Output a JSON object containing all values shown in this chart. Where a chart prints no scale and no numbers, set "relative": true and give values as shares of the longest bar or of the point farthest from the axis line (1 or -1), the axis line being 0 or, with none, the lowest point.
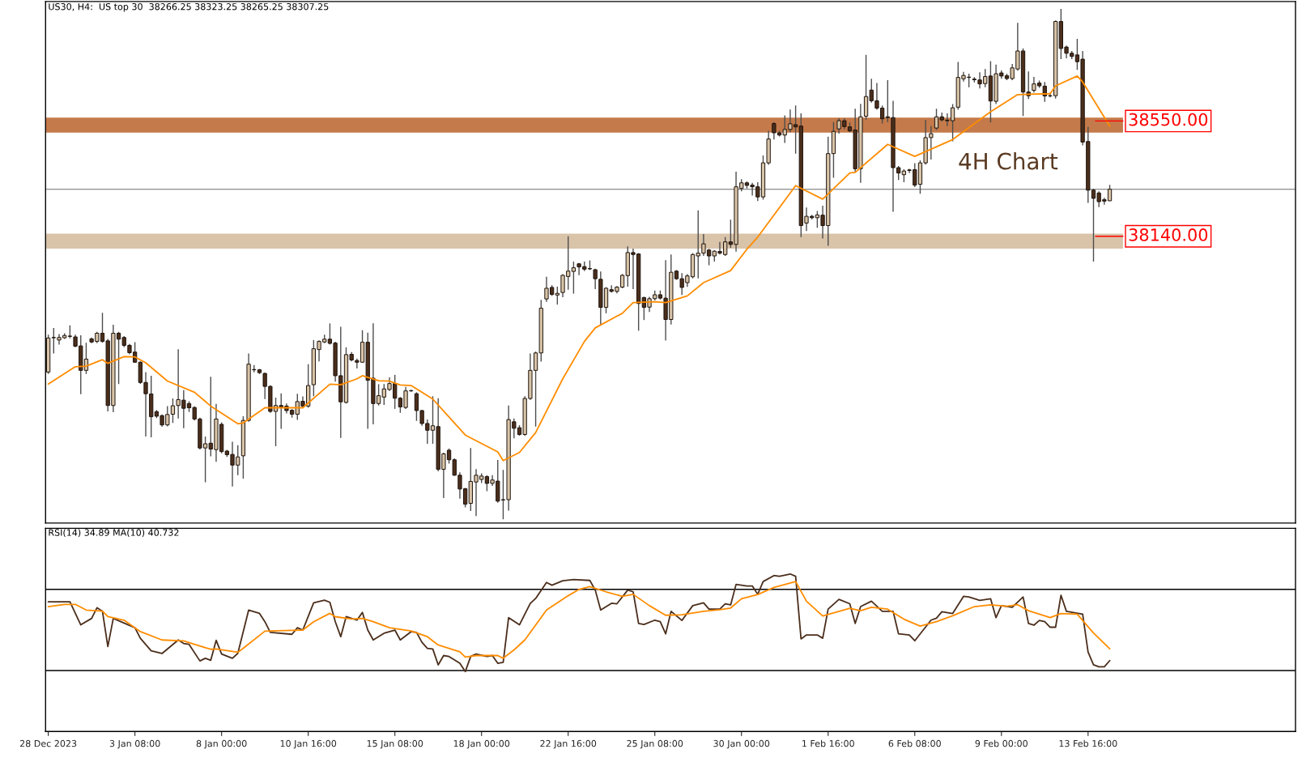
{
  "chart_data": [
    {
      "type": "candlestick",
      "title": "US30, H4:  US top 30  38266.25 38323.25 38265.25 38307.25",
      "categories": [
        null,
        null,
        null,
        null,
        null,
        null,
        null,
        null,
        null,
        null,
        null,
        null,
        null,
        null,
        null,
        null,
        null,
        null,
        null,
        null,
        null,
        null,
        null,
        null,
        null,
        null,
        null,
        null,
        null,
        null,
        null,
        null,
        null,
        null,
        null,
        null,
        null,
        null,
        null,
        null,
        null,
        null,
        null,
        null,
        null,
        null,
        null,
        null,
        null,
        null,
        null,
        null,
        null,
        null,
        null,
        null,
        null,
        null,
        null,
        null,
        null,
        null,
        null,
        null,
        null,
        null,
        null,
        null,
        null,
        null,
        null,
        null,
        null,
        null,
        null,
        null,
        null,
        null,
        null,
        null,
        null,
        null,
        null,
        null,
        null,
        null,
        null,
        null,
        null,
        null,
        null,
        null,
        null,
        null,
        null,
        null,
        null,
        null,
        null,
        null,
        null,
        null,
        null,
        null,
        null,
        null,
        null,
        null,
        null,
        null,
        null,
        null,
        null,
        null,
        null,
        null,
        null,
        null,
        null,
        null,
        null,
        null,
        null,
        null,
        null,
        null,
        null,
        null,
        null,
        null,
        null,
        null,
        null,
        null,
        null,
        null,
        null,
        null,
        null,
        null,
        null,
        null,
        null,
        null,
        null,
        null,
        null,
        null,
        null,
        null,
        null,
        null,
        null,
        null,
        null,
        null,
        null,
        null,
        null,
        null,
        null,
        null,
        null,
        null,
        null,
        null,
        null,
        null,
        null,
        null,
        null,
        null,
        null,
        null,
        null,
        null,
        null,
        null,
        null,
        null,
        null,
        null,
        null,
        null,
        null,
        null,
        null,
        null,
        null,
        null,
        null,
        null,
        null,
        null,
        null,
        null,
        null
      ],
      "ohlc": [
        [
          37657,
          37790,
          37650,
          37778
        ],
        [
          37780,
          37814,
          37723,
          37779
        ],
        [
          37771,
          37792,
          37755,
          37780
        ],
        [
          37779,
          37795,
          37775,
          37787
        ],
        [
          37785,
          37823,
          37777,
          37784
        ],
        [
          37782,
          37790,
          37745,
          37749
        ],
        [
          37750,
          37788,
          37578,
          37663
        ],
        [
          37663,
          37761,
          37650,
          37703
        ],
        [
          37775,
          37780,
          37760,
          37764
        ],
        [
          37766,
          37800,
          37760,
          37795
        ],
        [
          37795,
          37868,
          37761,
          37766
        ],
        [
          37768,
          37775,
          37517,
          37538
        ],
        [
          37538,
          37825,
          37514,
          37795
        ],
        [
          37795,
          37800,
          37614,
          37774
        ],
        [
          37780,
          37785,
          37745,
          37752
        ],
        [
          37752,
          37757,
          37720,
          37726
        ],
        [
          37728,
          37763,
          37690,
          37692
        ],
        [
          37692,
          37695,
          37615,
          37620
        ],
        [
          37620,
          37657,
          37428,
          37580
        ],
        [
          37579,
          37644,
          37425,
          37498
        ],
        [
          37516,
          37522,
          37493,
          37500
        ],
        [
          37502,
          37506,
          37462,
          37469
        ],
        [
          37469,
          37536,
          37464,
          37506
        ],
        [
          37507,
          37563,
          37476,
          37537
        ],
        [
          37538,
          37738,
          37492,
          37559
        ],
        [
          37557,
          37593,
          37457,
          37528
        ],
        [
          37545,
          37553,
          37515,
          37530
        ],
        [
          37531,
          37535,
          37485,
          37490
        ],
        [
          37490,
          37495,
          37382,
          37387
        ],
        [
          37387,
          37428,
          37265,
          37402
        ],
        [
          37404,
          37640,
          37357,
          37383
        ],
        [
          37381,
          37544,
          37338,
          37490
        ],
        [
          37471,
          37478,
          37368,
          37374
        ],
        [
          37376,
          37380,
          37355,
          37363
        ],
        [
          37364,
          37409,
          37250,
          37326
        ],
        [
          37326,
          37397,
          37290,
          37355
        ],
        [
          37359,
          37500,
          37278,
          37485
        ],
        [
          37485,
          37723,
          37480,
          37685
        ],
        [
          37666,
          37682,
          37656,
          37665
        ],
        [
          37665,
          37668,
          37650,
          37655
        ],
        [
          37652,
          37655,
          37561,
          37606
        ],
        [
          37606,
          37610,
          37512,
          37517
        ],
        [
          37517,
          37566,
          37393,
          37538
        ],
        [
          37538,
          37581,
          37455,
          37533
        ],
        [
          37536,
          37545,
          37510,
          37520
        ],
        [
          37521,
          37525,
          37495,
          37507
        ],
        [
          37507,
          37580,
          37487,
          37552
        ],
        [
          37553,
          37570,
          37530,
          37536
        ],
        [
          37536,
          37685,
          37530,
          37609
        ],
        [
          37612,
          37771,
          37571,
          37740
        ],
        [
          37737,
          37770,
          37695,
          37766
        ],
        [
          37764,
          37790,
          37760,
          37774
        ],
        [
          37774,
          37830,
          37755,
          37759
        ],
        [
          37760,
          37765,
          37623,
          37644
        ],
        [
          37644,
          37818,
          37423,
          37551
        ],
        [
          37549,
          37745,
          37545,
          37719
        ],
        [
          37720,
          37728,
          37695,
          37700
        ],
        [
          37698,
          37705,
          37670,
          37692
        ],
        [
          37692,
          37806,
          37690,
          37763
        ],
        [
          37763,
          37797,
          37455,
          37628
        ],
        [
          37635,
          37830,
          37471,
          37545
        ],
        [
          37545,
          37614,
          37538,
          37573
        ],
        [
          37568,
          37614,
          37540,
          37597
        ],
        [
          37595,
          37638,
          37590,
          37616
        ],
        [
          37616,
          37647,
          37526,
          37564
        ],
        [
          37564,
          37568,
          37512,
          37533
        ],
        [
          37531,
          37604,
          37526,
          37590
        ],
        [
          37591,
          37594,
          37587,
          37590
        ],
        [
          37580,
          37585,
          37483,
          37520
        ],
        [
          37520,
          37522,
          37466,
          37474
        ],
        [
          37474,
          37488,
          37402,
          37450
        ],
        [
          37450,
          37571,
          37402,
          37466
        ],
        [
          37463,
          37564,
          37304,
          37311
        ],
        [
          37311,
          37370,
          37209,
          37366
        ],
        [
          37379,
          37385,
          37331,
          37345
        ],
        [
          37345,
          37350,
          37288,
          37290
        ],
        [
          37290,
          37300,
          37207,
          37241
        ],
        [
          37242,
          37245,
          37176,
          37187
        ],
        [
          37190,
          37387,
          37163,
          37268
        ],
        [
          37266,
          37312,
          37145,
          37290
        ],
        [
          37275,
          37297,
          37262,
          37287
        ],
        [
          37285,
          37290,
          37233,
          37261
        ],
        [
          37261,
          37290,
          37252,
          37273
        ],
        [
          37269,
          37344,
          37192,
          37198
        ],
        [
          37202,
          37309,
          37133,
          37203
        ],
        [
          37203,
          37538,
          37164,
          37488
        ],
        [
          37480,
          37492,
          37421,
          37457
        ],
        [
          37459,
          37468,
          37431,
          37435
        ],
        [
          37435,
          37571,
          37430,
          37563
        ],
        [
          37563,
          37723,
          37558,
          37663
        ],
        [
          37663,
          37730,
          37463,
          37725
        ],
        [
          37725,
          37914,
          37694,
          37884
        ],
        [
          37917,
          37996,
          37907,
          37955
        ],
        [
          37958,
          37966,
          37928,
          37933
        ],
        [
          37931,
          37961,
          37897,
          37937
        ],
        [
          37940,
          38005,
          37923,
          38001
        ],
        [
          37997,
          38140,
          37950,
          38016
        ],
        [
          38015,
          38050,
          37936,
          38028
        ],
        [
          38042,
          38045,
          38002,
          38031
        ],
        [
          38032,
          38050,
          38016,
          38023
        ],
        [
          38025,
          38054,
          38020,
          38024
        ],
        [
          38021,
          38025,
          37952,
          37989
        ],
        [
          37987,
          38015,
          37823,
          37887
        ],
        [
          37887,
          37959,
          37866,
          37955
        ],
        [
          37950,
          37966,
          37940,
          37944
        ],
        [
          37944,
          37963,
          37937,
          37959
        ],
        [
          37959,
          38006,
          37955,
          38001
        ],
        [
          38000,
          38104,
          37961,
          38082
        ],
        [
          38082,
          38096,
          37952,
          38075
        ],
        [
          38077,
          38080,
          37804,
          37901
        ],
        [
          37922,
          37925,
          37842,
          37887
        ],
        [
          37888,
          37925,
          37871,
          37918
        ],
        [
          37918,
          37947,
          37912,
          37932
        ],
        [
          37932,
          37947,
          37915,
          37920
        ],
        [
          37920,
          38055,
          37769,
          37844
        ],
        [
          37844,
          38075,
          37826,
          38012
        ],
        [
          38016,
          38020,
          37985,
          37989
        ],
        [
          37989,
          38009,
          37931,
          37958
        ],
        [
          37975,
          38005,
          37960,
          37999
        ],
        [
          37996,
          38080,
          37990,
          38075
        ],
        [
          38070,
          38232,
          37990,
          38080
        ],
        [
          38080,
          38148,
          38070,
          38113
        ],
        [
          38091,
          38095,
          38037,
          38070
        ],
        [
          38070,
          38090,
          38050,
          38087
        ],
        [
          38086,
          38120,
          38075,
          38080
        ],
        [
          38075,
          38137,
          38070,
          38120
        ],
        [
          38120,
          38199,
          38099,
          38111
        ],
        [
          38111,
          38370,
          38085,
          38316
        ],
        [
          38310,
          38343,
          38300,
          38330
        ],
        [
          38330,
          38335,
          38310,
          38321
        ],
        [
          38322,
          38330,
          38285,
          38316
        ],
        [
          38316,
          38332,
          38265,
          38280
        ],
        [
          38280,
          38427,
          38270,
          38401
        ],
        [
          38401,
          38515,
          38394,
          38486
        ],
        [
          38541,
          38546,
          38484,
          38508
        ],
        [
          38508,
          38515,
          38495,
          38500
        ],
        [
          38500,
          38570,
          38472,
          38520
        ],
        [
          38520,
          38591,
          38510,
          38540
        ],
        [
          38537,
          38605,
          38434,
          38529
        ],
        [
          38532,
          38577,
          38137,
          38178
        ],
        [
          38187,
          38242,
          38159,
          38211
        ],
        [
          38211,
          38216,
          38200,
          38206
        ],
        [
          38206,
          38230,
          38170,
          38216
        ],
        [
          38215,
          38249,
          38132,
          38178
        ],
        [
          38178,
          38494,
          38106,
          38434
        ],
        [
          38434,
          38546,
          38348,
          38513
        ],
        [
          38522,
          38560,
          38505,
          38551
        ],
        [
          38551,
          38560,
          38520,
          38530
        ],
        [
          38529,
          38545,
          38510,
          38515
        ],
        [
          38518,
          38594,
          38370,
          38380
        ],
        [
          38380,
          38611,
          38330,
          38565
        ],
        [
          38567,
          38785,
          38555,
          38637
        ],
        [
          38660,
          38700,
          38615,
          38622
        ],
        [
          38622,
          38685,
          38590,
          38596
        ],
        [
          38596,
          38605,
          38541,
          38558
        ],
        [
          38565,
          38695,
          38546,
          38562
        ],
        [
          38562,
          38622,
          38227,
          38384
        ],
        [
          38384,
          38390,
          38340,
          38365
        ],
        [
          38359,
          38378,
          38332,
          38372
        ],
        [
          38376,
          38380,
          38365,
          38374
        ],
        [
          38377,
          38400,
          38315,
          38322
        ],
        [
          38325,
          38410,
          38291,
          38401
        ],
        [
          38401,
          38553,
          38395,
          38491
        ],
        [
          38491,
          38532,
          38413,
          38505
        ],
        [
          38525,
          38594,
          38518,
          38565
        ],
        [
          38565,
          38580,
          38548,
          38554
        ],
        [
          38553,
          38577,
          38532,
          38551
        ],
        [
          38551,
          38610,
          38478,
          38597
        ],
        [
          38599,
          38760,
          38590,
          38705
        ],
        [
          38700,
          38725,
          38690,
          38712
        ],
        [
          38706,
          38718,
          38670,
          38705
        ],
        [
          38699,
          38706,
          38687,
          38697
        ],
        [
          38696,
          38723,
          38666,
          38682
        ],
        [
          38683,
          38735,
          38670,
          38708
        ],
        [
          38710,
          38763,
          38545,
          38621
        ],
        [
          38620,
          38751,
          38610,
          38718
        ],
        [
          38721,
          38730,
          38700,
          38710
        ],
        [
          38711,
          38718,
          38695,
          38701
        ],
        [
          38701,
          38753,
          38695,
          38739
        ],
        [
          38735,
          38899,
          38729,
          38799
        ],
        [
          38799,
          38808,
          38568,
          38653
        ],
        [
          38653,
          38726,
          38628,
          38640
        ],
        [
          38659,
          38707,
          38651,
          38682
        ],
        [
          38685,
          38694,
          38668,
          38675
        ],
        [
          38674,
          38689,
          38618,
          38639
        ],
        [
          38640,
          38651,
          38634,
          38639
        ],
        [
          38640,
          38908,
          38630,
          38904
        ],
        [
          38904,
          38949,
          38770,
          38808
        ],
        [
          38813,
          38818,
          38773,
          38791
        ],
        [
          38791,
          38799,
          38770,
          38780
        ],
        [
          38785,
          38842,
          38732,
          38761
        ],
        [
          38770,
          38799,
          38463,
          38475
        ],
        [
          38477,
          38529,
          38259,
          38304
        ],
        [
          38304,
          38309,
          38050,
          38275
        ],
        [
          38294,
          38300,
          38244,
          38263
        ],
        [
          38270,
          38277,
          38252,
          38265
        ],
        [
          38266.25,
          38323.25,
          38265.25,
          38307.25
        ]
      ],
      "colors": [
        "#d8c4a8",
        "#4b2e1c",
        "#d8c4a8",
        "#d8c4a8",
        "#4b2e1c",
        "#4b2e1c",
        "#4b2e1c",
        "#d8c4a8",
        "#4b2e1c",
        "#d8c4a8",
        "#4b2e1c",
        "#4b2e1c",
        "#d8c4a8",
        "#4b2e1c",
        "#4b2e1c",
        "#4b2e1c",
        "#4b2e1c",
        "#4b2e1c",
        "#4b2e1c",
        "#4b2e1c",
        "#4b2e1c",
        "#4b2e1c",
        "#d8c4a8",
        "#d8c4a8",
        "#d8c4a8",
        "#4b2e1c",
        "#4b2e1c",
        "#4b2e1c",
        "#4b2e1c",
        "#d8c4a8",
        "#4b2e1c",
        "#d8c4a8",
        "#4b2e1c",
        "#4b2e1c",
        "#4b2e1c",
        "#d8c4a8",
        "#d8c4a8",
        "#d8c4a8",
        "#4b2e1c",
        "#4b2e1c",
        "#4b2e1c",
        "#4b2e1c",
        "#d8c4a8",
        "#4b2e1c",
        "#4b2e1c",
        "#4b2e1c",
        "#d8c4a8",
        "#4b2e1c",
        "#d8c4a8",
        "#d8c4a8",
        "#d8c4a8",
        "#d8c4a8",
        "#4b2e1c",
        "#4b2e1c",
        "#4b2e1c",
        "#d8c4a8",
        "#4b2e1c",
        "#4b2e1c",
        "#d8c4a8",
        "#4b2e1c",
        "#4b2e1c",
        "#d8c4a8",
        "#d8c4a8",
        "#d8c4a8",
        "#4b2e1c",
        "#4b2e1c",
        "#d8c4a8",
        "#4b2e1c",
        "#4b2e1c",
        "#4b2e1c",
        "#4b2e1c",
        "#d8c4a8",
        "#4b2e1c",
        "#d8c4a8",
        "#4b2e1c",
        "#4b2e1c",
        "#4b2e1c",
        "#4b2e1c",
        "#d8c4a8",
        "#d8c4a8",
        "#d8c4a8",
        "#4b2e1c",
        "#d8c4a8",
        "#4b2e1c",
        "#d8c4a8",
        "#d8c4a8",
        "#4b2e1c",
        "#4b2e1c",
        "#d8c4a8",
        "#d8c4a8",
        "#d8c4a8",
        "#d8c4a8",
        "#d8c4a8",
        "#4b2e1c",
        "#d8c4a8",
        "#d8c4a8",
        "#d8c4a8",
        "#d8c4a8",
        "#4b2e1c",
        "#4b2e1c",
        "#4b2e1c",
        "#4b2e1c",
        "#4b2e1c",
        "#d8c4a8",
        "#4b2e1c",
        "#d8c4a8",
        "#d8c4a8",
        "#d8c4a8",
        "#4b2e1c",
        "#4b2e1c",
        "#4b2e1c",
        "#d8c4a8",
        "#d8c4a8",
        "#4b2e1c",
        "#4b2e1c",
        "#d8c4a8",
        "#4b2e1c",
        "#4b2e1c",
        "#d8c4a8",
        "#d8c4a8",
        "#d8c4a8",
        "#d8c4a8",
        "#4b2e1c",
        "#d8c4a8",
        "#4b2e1c",
        "#d8c4a8",
        "#4b2e1c",
        "#d8c4a8",
        "#d8c4a8",
        "#4b2e1c",
        "#4b2e1c",
        "#4b2e1c",
        "#d8c4a8",
        "#d8c4a8",
        "#4b2e1c",
        "#4b2e1c",
        "#d8c4a8",
        "#d8c4a8",
        "#4b2e1c",
        "#4b2e1c",
        "#d8c4a8",
        "#4b2e1c",
        "#d8c4a8",
        "#4b2e1c",
        "#d8c4a8",
        "#d8c4a8",
        "#d8c4a8",
        "#4b2e1c",
        "#4b2e1c",
        "#4b2e1c",
        "#d8c4a8",
        "#d8c4a8",
        "#4b2e1c",
        "#4b2e1c",
        "#4b2e1c",
        "#4b2e1c",
        "#4b2e1c",
        "#4b2e1c",
        "#d8c4a8",
        "#4b2e1c",
        "#4b2e1c",
        "#d8c4a8",
        "#d8c4a8",
        "#d8c4a8",
        "#d8c4a8",
        "#4b2e1c",
        "#4b2e1c",
        "#d8c4a8",
        "#d8c4a8",
        "#d8c4a8",
        "#4b2e1c",
        "#4b2e1c",
        "#4b2e1c",
        "#d8c4a8",
        "#4b2e1c",
        "#d8c4a8",
        "#4b2e1c",
        "#4b2e1c",
        "#d8c4a8",
        "#d8c4a8",
        "#4b2e1c",
        "#4b2e1c",
        "#d8c4a8",
        "#4b2e1c",
        "#4b2e1c",
        "#4b2e1c",
        "#d8c4a8",
        "#4b2e1c",
        "#4b2e1c",
        "#4b2e1c",
        "#4b2e1c",
        "#4b2e1c",
        "#4b2e1c",
        "#4b2e1c",
        "#4b2e1c",
        "#4b2e1c",
        "#d8c4a8"
      ],
      "series": [
        {
          "type": "line",
          "color": "#ff8c00",
          "values": [
            37614,
            null,
            null,
            null,
            null,
            37676,
            null,
            37678,
            null,
            null,
            37701,
            37688,
            null,
            null,
            37712,
            null,
            37711,
            null,
            37690,
            null,
            null,
            null,
            37625,
            null,
            null,
            null,
            null,
            37585,
            null,
            null,
            37536,
            null,
            null,
            null,
            null,
            37473,
            37476,
            null,
            null,
            null,
            37530,
            null,
            null,
            null,
            null,
            null,
            null,
            37530,
            null,
            null,
            null,
            null,
            37614,
            null,
            37612,
            null,
            null,
            37633,
            37644,
            null,
            null,
            37626,
            null,
            37625,
            null,
            37611,
            null,
            37609,
            null,
            null,
            null,
            37561,
            null,
            null,
            null,
            null,
            null,
            37433,
            null,
            null,
            null,
            null,
            null,
            37373,
            37342,
            null,
            null,
            37371,
            null,
            null,
            37442,
            null,
            null,
            null,
            null,
            37633,
            null,
            null,
            null,
            37766,
            null,
            37814,
            null,
            null,
            null,
            null,
            37866,
            null,
            37904,
            null,
            null,
            null,
            37907,
            null,
            37904,
            null,
            null,
            null,
            37928,
            null,
            null,
            37975,
            null,
            null,
            null,
            null,
            38018,
            null,
            null,
            38094,
            null,
            38137,
            null,
            null,
            null,
            null,
            null,
            null,
            38320,
            null,
            null,
            null,
            null,
            38272,
            null,
            null,
            null,
            null,
            38365,
            38367,
            null,
            null,
            null,
            null,
            null,
            38467,
            null,
            null,
            null,
            null,
            38424,
            null,
            null,
            null,
            null,
            null,
            null,
            38484,
            null,
            null,
            null,
            null,
            null,
            null,
            38583,
            null,
            null,
            null,
            null,
            38644,
            null,
            null,
            null,
            null,
            null,
            38647,
            38675,
            null,
            null,
            null,
            38710,
            38689,
            null,
            null,
            null,
            null,
            38532
          ]
        }
      ],
      "ylim": [
        37120,
        38975
      ],
      "tick_labels": false,
      "bands": [
        {
          "axis": "y",
          "from": 38509,
          "to": 38562,
          "color": "#c47a4a"
        },
        {
          "axis": "y",
          "from": 38096,
          "to": 38149,
          "color": "#d9c3a9"
        }
      ],
      "ref_lines": [
        {
          "axis": "y",
          "value": 38550,
          "label": "38550.00",
          "color": "#ff0000"
        },
        {
          "axis": "y",
          "value": 38140,
          "label": "38140.00",
          "color": "#ff0000"
        },
        {
          "axis": "y",
          "value": 38307.25,
          "label": null,
          "color": "#6e6e6e"
        }
      ],
      "annotations": [
        "4H Chart"
      ]
    },
    {
      "type": "line",
      "title": "RSI(14) 34.89 MA(10) 40.732",
      "categories": [
        "28 Dec 2023",
        null,
        null,
        null,
        null,
        null,
        null,
        null,
        null,
        null,
        null,
        null,
        null,
        null,
        null,
        null,
        "3 Jan 08:00",
        null,
        null,
        null,
        null,
        null,
        null,
        null,
        null,
        null,
        null,
        null,
        null,
        null,
        null,
        null,
        "8 Jan 00:00",
        null,
        null,
        null,
        null,
        null,
        null,
        null,
        null,
        null,
        null,
        null,
        null,
        null,
        null,
        null,
        "10 Jan 16:00",
        null,
        null,
        null,
        null,
        null,
        null,
        null,
        null,
        null,
        null,
        null,
        null,
        null,
        null,
        null,
        "15 Jan 08:00",
        null,
        null,
        null,
        null,
        null,
        null,
        null,
        null,
        null,
        null,
        null,
        null,
        null,
        null,
        null,
        "18 Jan 00:00",
        null,
        null,
        null,
        null,
        null,
        null,
        null,
        null,
        null,
        null,
        null,
        null,
        null,
        null,
        null,
        "22 Jan 16:00",
        null,
        null,
        null,
        null,
        null,
        null,
        null,
        null,
        null,
        null,
        null,
        null,
        null,
        null,
        null,
        "25 Jan 08:00",
        null,
        null,
        null,
        null,
        null,
        null,
        null,
        null,
        null,
        null,
        null,
        null,
        null,
        null,
        null,
        "30 Jan 00:00",
        null,
        null,
        null,
        null,
        null,
        null,
        null,
        null,
        null,
        null,
        null,
        null,
        null,
        null,
        null,
        "1 Feb 16:00",
        null,
        null,
        null,
        null,
        null,
        null,
        null,
        null,
        null,
        null,
        null,
        null,
        null,
        null,
        null,
        "6 Feb 08:00",
        null,
        null,
        null,
        null,
        null,
        null,
        null,
        null,
        null,
        null,
        null,
        null,
        null,
        null,
        null,
        "9 Feb 00:00",
        null,
        null,
        null,
        null,
        null,
        null,
        null,
        null,
        null,
        null,
        null,
        null,
        null,
        null,
        null,
        "13 Feb 16:00",
        null,
        null,
        null,
        null
      ],
      "series": [
        {
          "type": "line",
          "color": "#4b2e1c",
          "values": [
            0.823,
            null,
            null,
            null,
            0.823,
            null,
            0.677,
            null,
            0.718,
            0.786,
            0.764,
            0.539,
            0.718,
            null,
            null,
            null,
            0.659,
            0.592,
            null,
            0.512,
            null,
            0.495,
            null,
            null,
            0.581,
            0.559,
            0.553,
            null,
            0.448,
            0.465,
            0.452,
            0.579,
            0.492,
            null,
            0.465,
            0.496,
            null,
            0.771,
            null,
            0.75,
            0.697,
            0.629,
            null,
            null,
            null,
            0.617,
            0.659,
            0.644,
            null,
            0.817,
            null,
            0.834,
            0.82,
            0.697,
            0.602,
            0.729,
            null,
            0.707,
            0.756,
            0.644,
            0.581,
            null,
            0.624,
            null,
            0.644,
            0.581,
            null,
            0.634,
            0.629,
            0.566,
            0.528,
            0.524,
            0.423,
            0.482,
            0.476,
            null,
            0.433,
            0.38,
            0.476,
            0.492,
            null,
            0.476,
            0.482,
            0.433,
            0.439,
            0.723,
            null,
            0.677,
            null,
            0.813,
            0.845,
            null,
            0.946,
            0.929,
            null,
            0.957,
            null,
            0.965,
            null,
            null,
            0.959,
            0.898,
            0.771,
            null,
            0.814,
            0.811,
            null,
            0.898,
            0.887,
            0.686,
            0.679,
            null,
            0.707,
            0.697,
            0.62,
            0.763,
            null,
            0.705,
            null,
            0.799,
            null,
            0.817,
            0.777,
            null,
            0.777,
            0.811,
            0.804,
            0.934,
            null,
            0.924,
            0.924,
            0.871,
            0.952,
            null,
            0.99,
            0.985,
            null,
            1,
            0.985,
            0.588,
            0.613,
            null,
            0.613,
            0.592,
            0.777,
            null,
            0.839,
            null,
            0.811,
            0.686,
            0.793,
            null,
            0.827,
            null,
            0.763,
            null,
            0.763,
            0.62,
            null,
            0.613,
            0.576,
            null,
            null,
            0.707,
            0.719,
            0.76,
            null,
            0.749,
            null,
            0.858,
            0.854,
            null,
            0.832,
            null,
            0.843,
            0.723,
            0.799,
            null,
            0.789,
            null,
            0.854,
            0.686,
            0.675,
            0.705,
            0.697,
            0.662,
            0.662,
            0.865,
            0.763,
            null,
            null,
            0.745,
            0.505,
            0.424,
            0.411,
            0.411,
            0.45
          ]
        },
        {
          "type": "line",
          "color": "#ff8c00",
          "values": [
            0.793,
            null,
            null,
            0.807,
            null,
            0.807,
            null,
            0.771,
            null,
            null,
            0.764,
            0.729,
            null,
            null,
            0.707,
            null,
            null,
            0.634,
            null,
            null,
            null,
            0.581,
            null,
            null,
            null,
            0.575,
            null,
            0.553,
            null,
            null,
            0.522,
            0.524,
            null,
            null,
            null,
            0.503,
            0.528,
            null,
            null,
            null,
            0.637,
            null,
            null,
            null,
            null,
            0.642,
            null,
            0.644,
            null,
            0.697,
            null,
            null,
            0.75,
            0.729,
            null,
            null,
            0.714,
            null,
            0.718,
            null,
            0.697,
            null,
            null,
            0.659,
            null,
            null,
            null,
            0.638,
            null,
            null,
            0.602,
            null,
            0.549,
            null,
            null,
            null,
            0.506,
            0.472,
            null,
            0.482,
            null,
            null,
            null,
            0.482,
            0.465,
            null,
            0.518,
            null,
            0.581,
            null,
            null,
            null,
            0.771,
            null,
            null,
            null,
            0.862,
            null,
            0.902,
            null,
            0.92,
            null,
            null,
            0.887,
            null,
            null,
            0.858,
            null,
            0.871,
            null,
            null,
            0.799,
            null,
            null,
            0.738,
            null,
            null,
            0.741,
            null,
            null,
            null,
            0.763,
            null,
            null,
            0.773,
            null,
            0.784,
            null,
            0.843,
            null,
            null,
            0.87,
            null,
            null,
            0.915,
            null,
            null,
            null,
            0.952,
            null,
            0.827,
            null,
            null,
            0.733,
            null,
            null,
            null,
            null,
            0.782,
            null,
            0.767,
            null,
            0.789,
            null,
            null,
            0.777,
            null,
            null,
            0.713,
            null,
            null,
            0.669,
            null,
            null,
            0.697,
            null,
            null,
            0.735,
            null,
            null,
            null,
            0.793,
            null,
            null,
            0.804,
            null,
            null,
            0.795,
            null,
            0.805,
            null,
            0.767,
            null,
            null,
            null,
            0.723,
            null,
            0.749,
            null,
            null,
            0.745,
            null,
            null,
            0.625,
            null,
            0.559,
            0.525
          ]
        }
      ],
      "relative": true,
      "tick_labels": "x",
      "ref_lines": [
        {
          "axis": "y",
          "value": 0.902,
          "label": null,
          "color": "#000000"
        },
        {
          "axis": "y",
          "value": 0.387,
          "label": null,
          "color": "#000000"
        }
      ]
    }
  ]
}
